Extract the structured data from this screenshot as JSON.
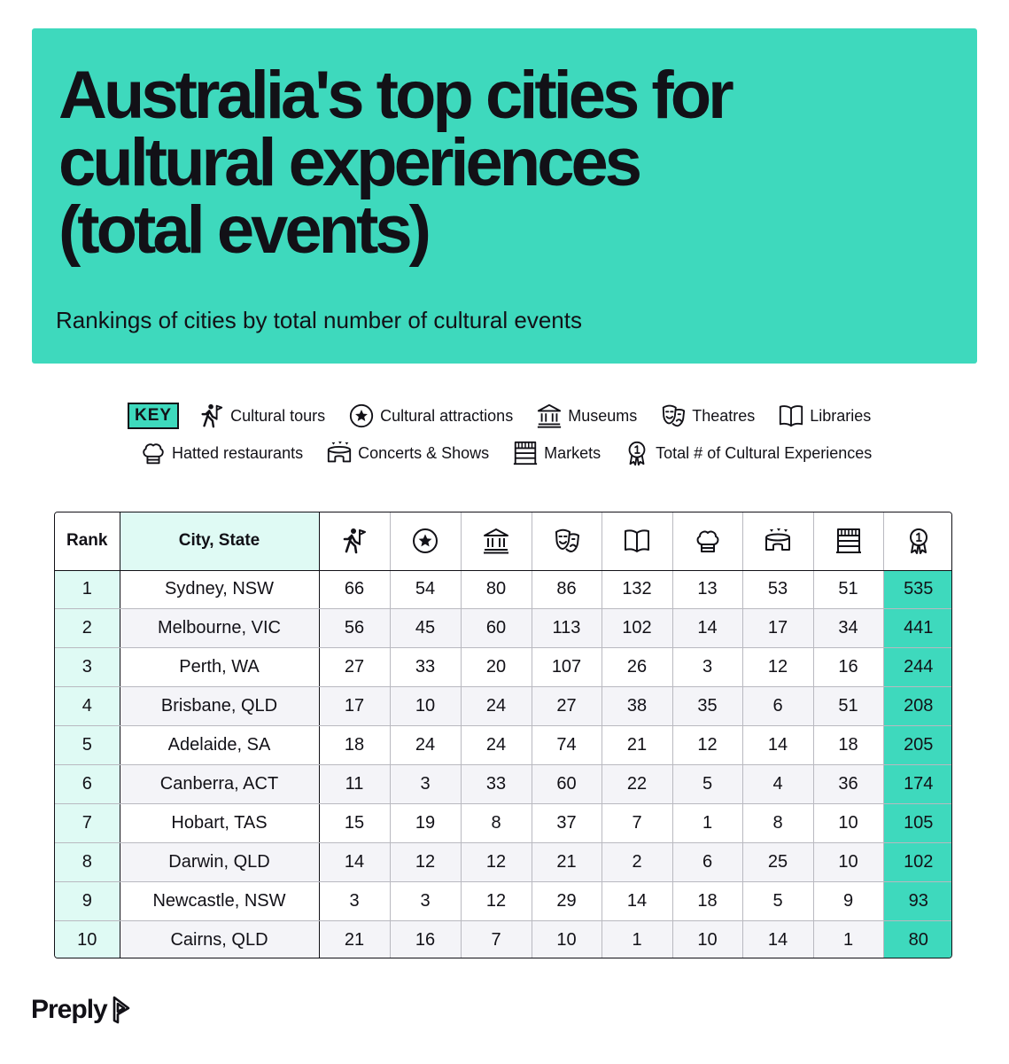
{
  "header": {
    "title_lines": [
      "Australia's top cities for",
      "cultural experiences",
      "(total events)"
    ],
    "subtitle": "Rankings of cities by total number of cultural events"
  },
  "key": {
    "badge": "KEY",
    "row1": [
      {
        "icon": "cultural-tours-icon",
        "label": "Cultural tours"
      },
      {
        "icon": "cultural-attractions-icon",
        "label": "Cultural attractions"
      },
      {
        "icon": "museums-icon",
        "label": "Museums"
      },
      {
        "icon": "theatres-icon",
        "label": "Theatres"
      },
      {
        "icon": "libraries-icon",
        "label": "Libraries"
      }
    ],
    "row2": [
      {
        "icon": "hatted-restaurants-icon",
        "label": "Hatted restaurants"
      },
      {
        "icon": "concerts-shows-icon",
        "label": "Concerts & Shows"
      },
      {
        "icon": "markets-icon",
        "label": "Markets"
      },
      {
        "icon": "total-icon",
        "label": "Total # of Cultural Experiences"
      }
    ]
  },
  "colors": {
    "accent": "#3ed9bd",
    "accent_light": "#dffaf4",
    "row_alt": "#f4f4f8",
    "text": "#121117"
  },
  "chart_data": {
    "type": "table",
    "title": "Australia's top cities for cultural experiences (total events)",
    "subtitle": "Rankings of cities by total number of cultural events",
    "columns": [
      "Rank",
      "City, State",
      "Cultural tours",
      "Cultural attractions",
      "Museums",
      "Theatres",
      "Libraries",
      "Hatted restaurants",
      "Concerts & Shows",
      "Markets",
      "Total # of Cultural Experiences"
    ],
    "header_labels": {
      "rank": "Rank",
      "city": "City, State"
    },
    "rows": [
      {
        "rank": "1",
        "city": "Sydney, NSW",
        "values": [
          66,
          54,
          80,
          86,
          132,
          13,
          53,
          51
        ],
        "total": 535
      },
      {
        "rank": "2",
        "city": "Melbourne, VIC",
        "values": [
          56,
          45,
          60,
          113,
          102,
          14,
          17,
          34
        ],
        "total": 441
      },
      {
        "rank": "3",
        "city": "Perth, WA",
        "values": [
          27,
          33,
          20,
          107,
          26,
          3,
          12,
          16
        ],
        "total": 244
      },
      {
        "rank": "4",
        "city": "Brisbane, QLD",
        "values": [
          17,
          10,
          24,
          27,
          38,
          35,
          6,
          51
        ],
        "total": 208
      },
      {
        "rank": "5",
        "city": "Adelaide, SA",
        "values": [
          18,
          24,
          24,
          74,
          21,
          12,
          14,
          18
        ],
        "total": 205
      },
      {
        "rank": "6",
        "city": "Canberra, ACT",
        "values": [
          11,
          3,
          33,
          60,
          22,
          5,
          4,
          36
        ],
        "total": 174
      },
      {
        "rank": "7",
        "city": "Hobart, TAS",
        "values": [
          15,
          19,
          8,
          37,
          7,
          1,
          8,
          10
        ],
        "total": 105
      },
      {
        "rank": "8",
        "city": "Darwin, QLD",
        "values": [
          14,
          12,
          12,
          21,
          2,
          6,
          25,
          10
        ],
        "total": 102
      },
      {
        "rank": "9",
        "city": "Newcastle, NSW",
        "values": [
          3,
          3,
          12,
          29,
          14,
          18,
          5,
          9
        ],
        "total": 93
      },
      {
        "rank": "10",
        "city": "Cairns, QLD",
        "values": [
          21,
          16,
          7,
          10,
          1,
          10,
          14,
          1
        ],
        "total": 80
      }
    ]
  },
  "footer": {
    "logo_text": "Preply"
  }
}
